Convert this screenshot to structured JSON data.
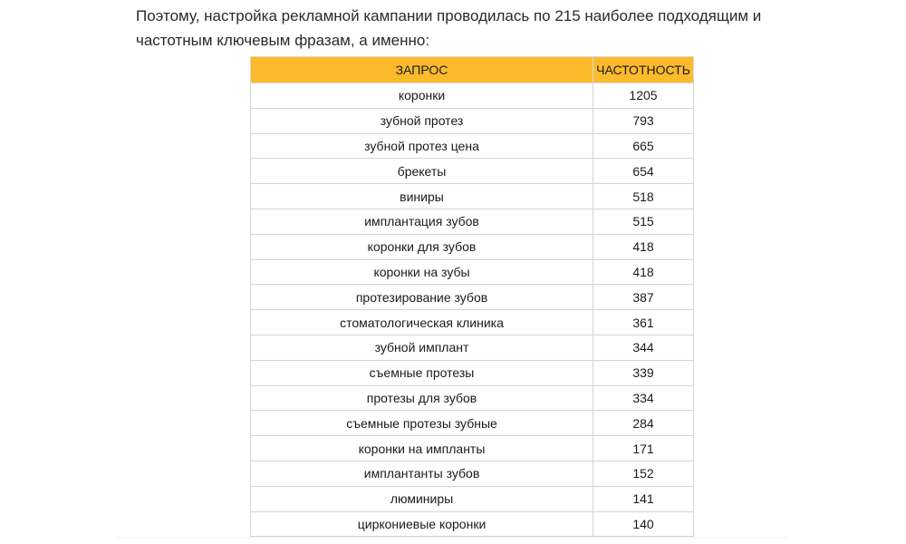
{
  "intro": {
    "line1": "Поэтому, настройка рекламной кампании проводилась по 215 наиболее подходящим и",
    "line2": "частотным ключевым фразам, а именно:"
  },
  "table": {
    "headers": {
      "query": "ЗАПРОС",
      "frequency": "ЧАСТОТНОСТЬ"
    },
    "header_color": "#fbbb2c",
    "rows": [
      {
        "query": "коронки",
        "frequency": "1205"
      },
      {
        "query": "зубной протез",
        "frequency": "793"
      },
      {
        "query": "зубной протез цена",
        "frequency": "665"
      },
      {
        "query": "брекеты",
        "frequency": "654"
      },
      {
        "query": "виниры",
        "frequency": "518"
      },
      {
        "query": "имплантация зубов",
        "frequency": "515"
      },
      {
        "query": "коронки для зубов",
        "frequency": "418"
      },
      {
        "query": "коронки на зубы",
        "frequency": "418"
      },
      {
        "query": "протезирование зубов",
        "frequency": "387"
      },
      {
        "query": "стоматологическая клиника",
        "frequency": "361"
      },
      {
        "query": "зубной имплант",
        "frequency": "344"
      },
      {
        "query": "съемные протезы",
        "frequency": "339"
      },
      {
        "query": "протезы для зубов",
        "frequency": "334"
      },
      {
        "query": "съемные протезы зубные",
        "frequency": "284"
      },
      {
        "query": "коронки на импланты",
        "frequency": "171"
      },
      {
        "query": "имплантанты зубов",
        "frequency": "152"
      },
      {
        "query": "люминиры",
        "frequency": "141"
      },
      {
        "query": "циркониевые коронки",
        "frequency": "140"
      }
    ]
  }
}
